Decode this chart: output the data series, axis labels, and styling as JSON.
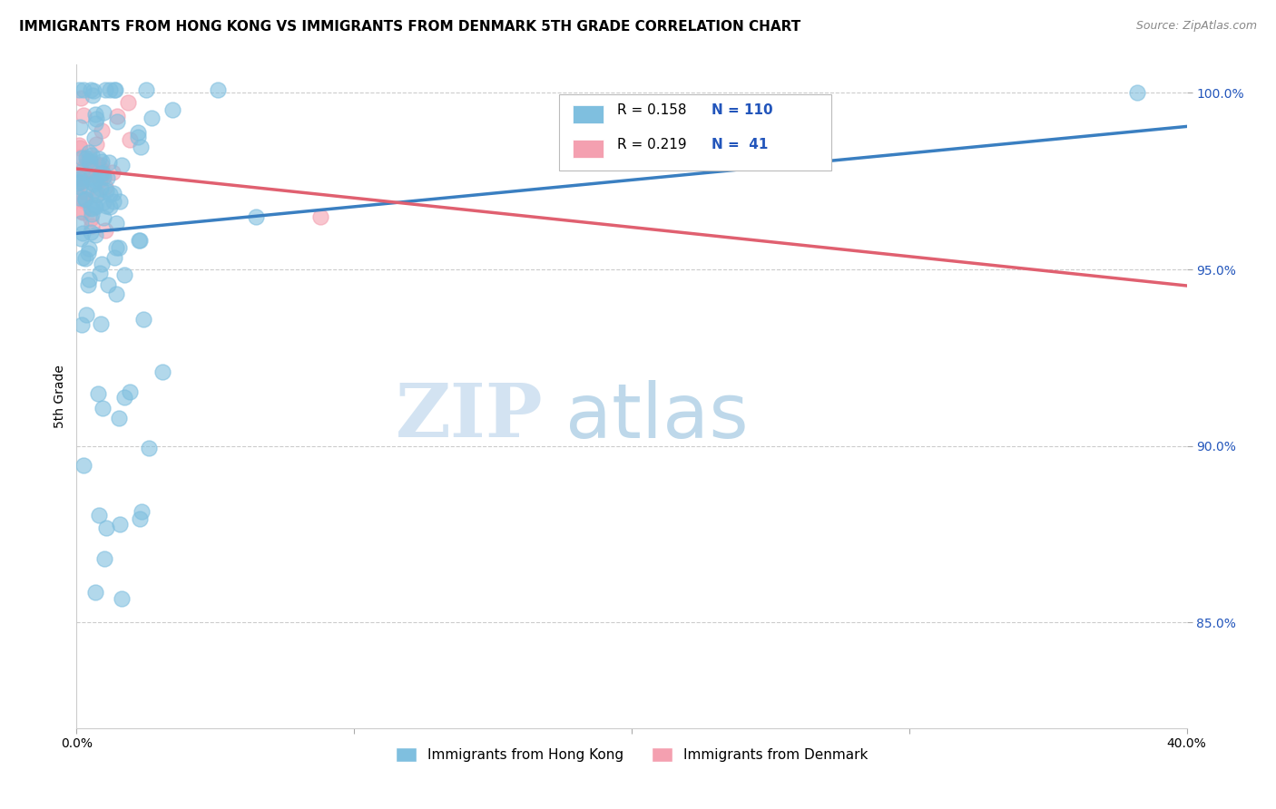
{
  "title": "IMMIGRANTS FROM HONG KONG VS IMMIGRANTS FROM DENMARK 5TH GRADE CORRELATION CHART",
  "source": "Source: ZipAtlas.com",
  "ylabel": "5th Grade",
  "xlim": [
    0.0,
    0.4
  ],
  "ylim": [
    0.82,
    1.008
  ],
  "yticks": [
    0.85,
    0.9,
    0.95,
    1.0
  ],
  "ytick_labels": [
    "85.0%",
    "90.0%",
    "95.0%",
    "100.0%"
  ],
  "hk_color": "#7fbfdf",
  "dk_color": "#f4a0b0",
  "hk_line_color": "#3a7fc1",
  "dk_line_color": "#e06070",
  "hk_R": 0.158,
  "hk_N": 110,
  "dk_R": 0.219,
  "dk_N": 41,
  "legend_label_hk": "Immigrants from Hong Kong",
  "legend_label_dk": "Immigrants from Denmark",
  "title_fontsize": 11,
  "source_fontsize": 9,
  "tick_fontsize": 10,
  "ylabel_fontsize": 10
}
